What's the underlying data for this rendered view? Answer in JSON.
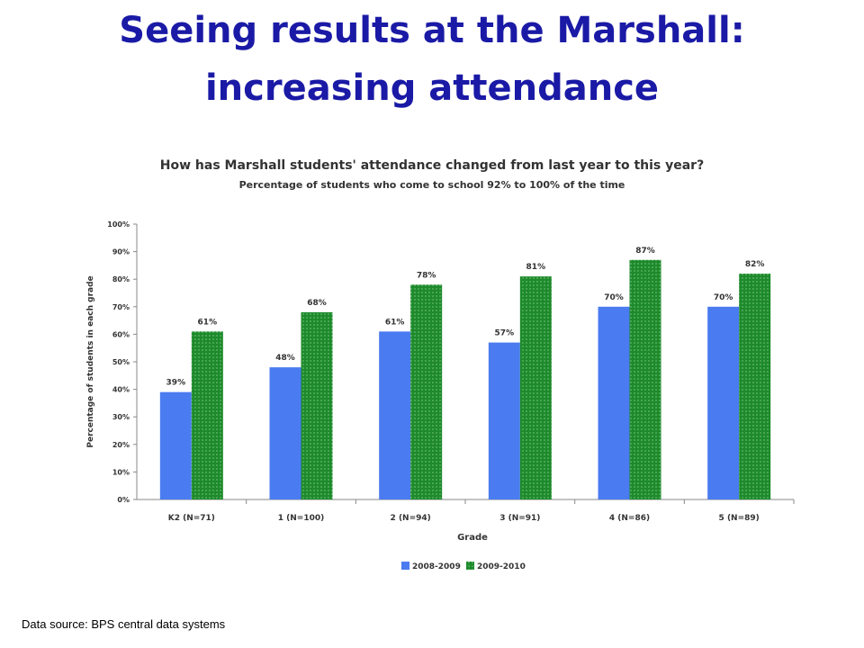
{
  "slide": {
    "title_line1": "Seeing results at the Marshall:",
    "title_line2": "increasing attendance",
    "footer": "Data source: BPS central data systems"
  },
  "chart_data": {
    "type": "bar",
    "title": "How has Marshall students' attendance changed from last year to this year?",
    "subtitle": "Percentage of students who come to school 92% to 100% of the time",
    "xlabel": "Grade",
    "ylabel": "Percentage of students in each grade",
    "ylim": [
      0,
      100
    ],
    "yticks": [
      "0%",
      "10%",
      "20%",
      "30%",
      "40%",
      "50%",
      "60%",
      "70%",
      "80%",
      "90%",
      "100%"
    ],
    "categories": [
      "K2 (N=71)",
      "1 (N=100)",
      "2 (N=94)",
      "3 (N=91)",
      "4 (N=86)",
      "5 (N=89)"
    ],
    "series": [
      {
        "name": "2008-2009",
        "values": [
          39,
          48,
          61,
          57,
          70,
          70
        ],
        "labels": [
          "39%",
          "48%",
          "61%",
          "57%",
          "70%",
          "70%"
        ],
        "color": "#4a7bf0"
      },
      {
        "name": "2009-2010",
        "values": [
          61,
          68,
          78,
          81,
          87,
          82
        ],
        "labels": [
          "61%",
          "68%",
          "78%",
          "81%",
          "87%",
          "82%"
        ],
        "color": "#1d8a2b"
      }
    ],
    "grid": false,
    "legend": "bottom"
  }
}
